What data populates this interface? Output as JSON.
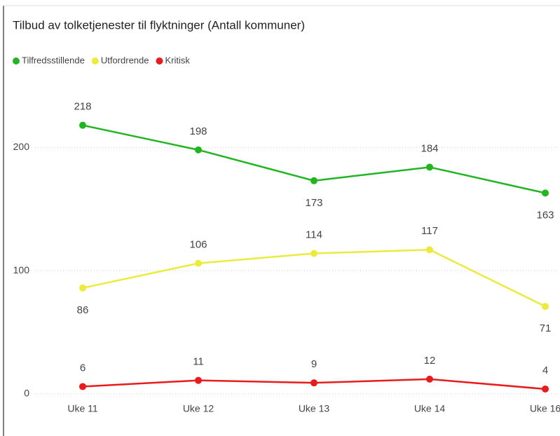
{
  "chart_data": {
    "type": "line",
    "title": "Tilbud av tolketjenester til flyktninger (Antall kommuner)",
    "categories": [
      "Uke 11",
      "Uke 12",
      "Uke 13",
      "Uke 14",
      "Uke 16"
    ],
    "series": [
      {
        "name": "Tilfredsstillende",
        "color": "#22b522",
        "values": [
          218,
          198,
          173,
          184,
          163
        ]
      },
      {
        "name": "Utfordrende",
        "color": "#ebeb3c",
        "values": [
          86,
          106,
          114,
          117,
          71
        ]
      },
      {
        "name": "Kritisk",
        "color": "#e81c1c",
        "values": [
          6,
          11,
          9,
          12,
          4
        ]
      }
    ],
    "ylim": [
      0,
      240
    ],
    "yticks": [
      0,
      100,
      200
    ],
    "grid": true,
    "legend": "top-left"
  }
}
